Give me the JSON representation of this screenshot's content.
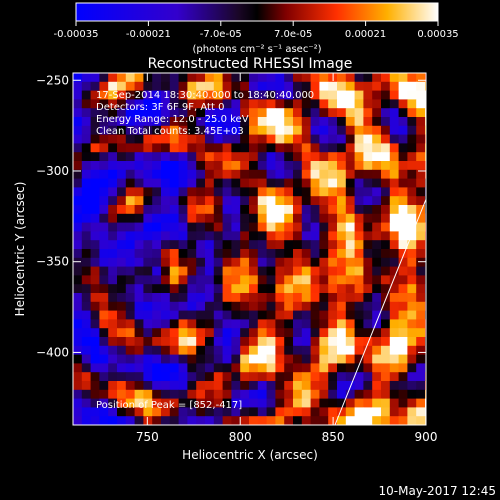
{
  "chart_data": {
    "type": "heatmap",
    "title": "Reconstructed RHESSI Image",
    "xlabel": "Heliocentric X (arcsec)",
    "ylabel": "Heliocentric Y (arcsec)",
    "xlim": [
      710,
      900
    ],
    "ylim": [
      -440,
      -246
    ],
    "x_ticks": [
      750,
      800,
      850,
      900
    ],
    "y_ticks": [
      -400,
      -350,
      -300,
      -250
    ],
    "colorbar": {
      "range": [
        -0.00035,
        0.00035
      ],
      "tick_labels": [
        "-0.00035",
        "-0.00021",
        "-7.0e-05",
        "7.0e-05",
        "0.00021",
        "0.00035"
      ],
      "label": "(photons cm⁻² s⁻¹ asec⁻²)"
    },
    "annotations": {
      "line1": "17-Sep-2014 18:30:40.000 to 18:40:40.000",
      "line2": "Detectors: 3F 6F 9F, Att 0",
      "line3": "Energy Range: 12.0 - 25.0 keV",
      "line4": "Clean    Total counts: 3.45E+03",
      "peak": "Position of Peak = [852,-417]"
    },
    "limb": [
      [
        851,
        -440
      ],
      [
        903,
        -308
      ]
    ],
    "peak_position": [
      852,
      -417
    ]
  },
  "footer": {
    "date": "10-May-2017 12:45"
  }
}
